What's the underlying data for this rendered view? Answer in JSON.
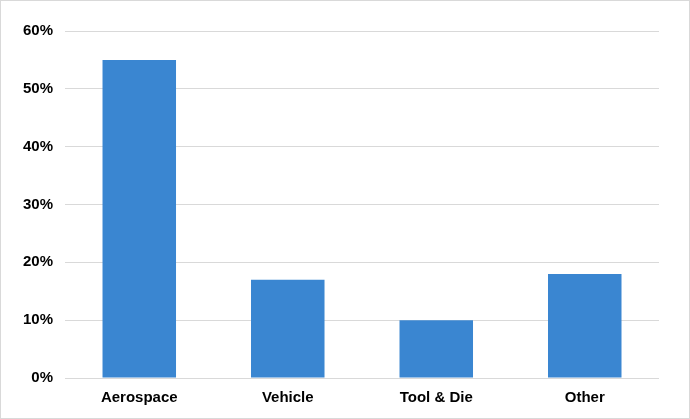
{
  "chart_data": {
    "type": "bar",
    "categories": [
      "Aerospace",
      "Vehicle",
      "Tool & Die",
      "Other"
    ],
    "values": [
      55,
      17,
      10,
      18
    ],
    "color": "#3a86d1",
    "ylim": [
      0,
      60
    ],
    "yticks": [
      {
        "value": 0,
        "label": "0%"
      },
      {
        "value": 10,
        "label": "10%"
      },
      {
        "value": 20,
        "label": "20%"
      },
      {
        "value": 30,
        "label": "30%"
      },
      {
        "value": 40,
        "label": "40%"
      },
      {
        "value": 50,
        "label": "50%"
      },
      {
        "value": 60,
        "label": "60%"
      }
    ],
    "grid": true
  }
}
